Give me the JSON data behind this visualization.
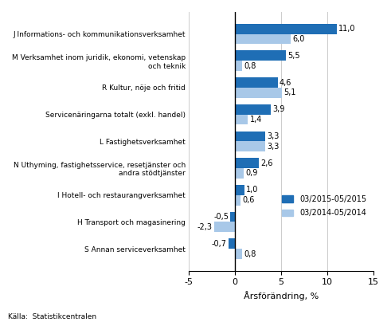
{
  "categories": [
    "J Informations- och kommunikationsverksamhet",
    "M Verksamhet inom juridik, ekonomi, vetenskap\noch teknik",
    "R Kultur, nöje och fritid",
    "Servicenäringarna totalt (exkl. handel)",
    "L Fastighetsverksamhet",
    "N Uthyming, fastighetsservice, resetjänster och\nandra stödtjänster",
    "I Hotell- och restaurangverksamhet",
    "H Transport och magasinering",
    "S Annan serviceverksamhet"
  ],
  "series1_label": "03/2015-05/2015",
  "series2_label": "03/2014-05/2014",
  "series1_values": [
    11.0,
    5.5,
    4.6,
    3.9,
    3.3,
    2.6,
    1.0,
    -0.5,
    -0.7
  ],
  "series2_values": [
    6.0,
    0.8,
    5.1,
    1.4,
    3.3,
    0.9,
    0.6,
    -2.3,
    0.8
  ],
  "series1_color": "#1f6eb5",
  "series2_color": "#a8c8e8",
  "bar_height": 0.38,
  "xlim": [
    -5,
    15
  ],
  "xticks": [
    -5,
    0,
    5,
    10,
    15
  ],
  "xlabel": "Årsförändring, %",
  "source": "Källa:  Statistikcentralen",
  "background_color": "#ffffff",
  "grid_color": "#cccccc"
}
